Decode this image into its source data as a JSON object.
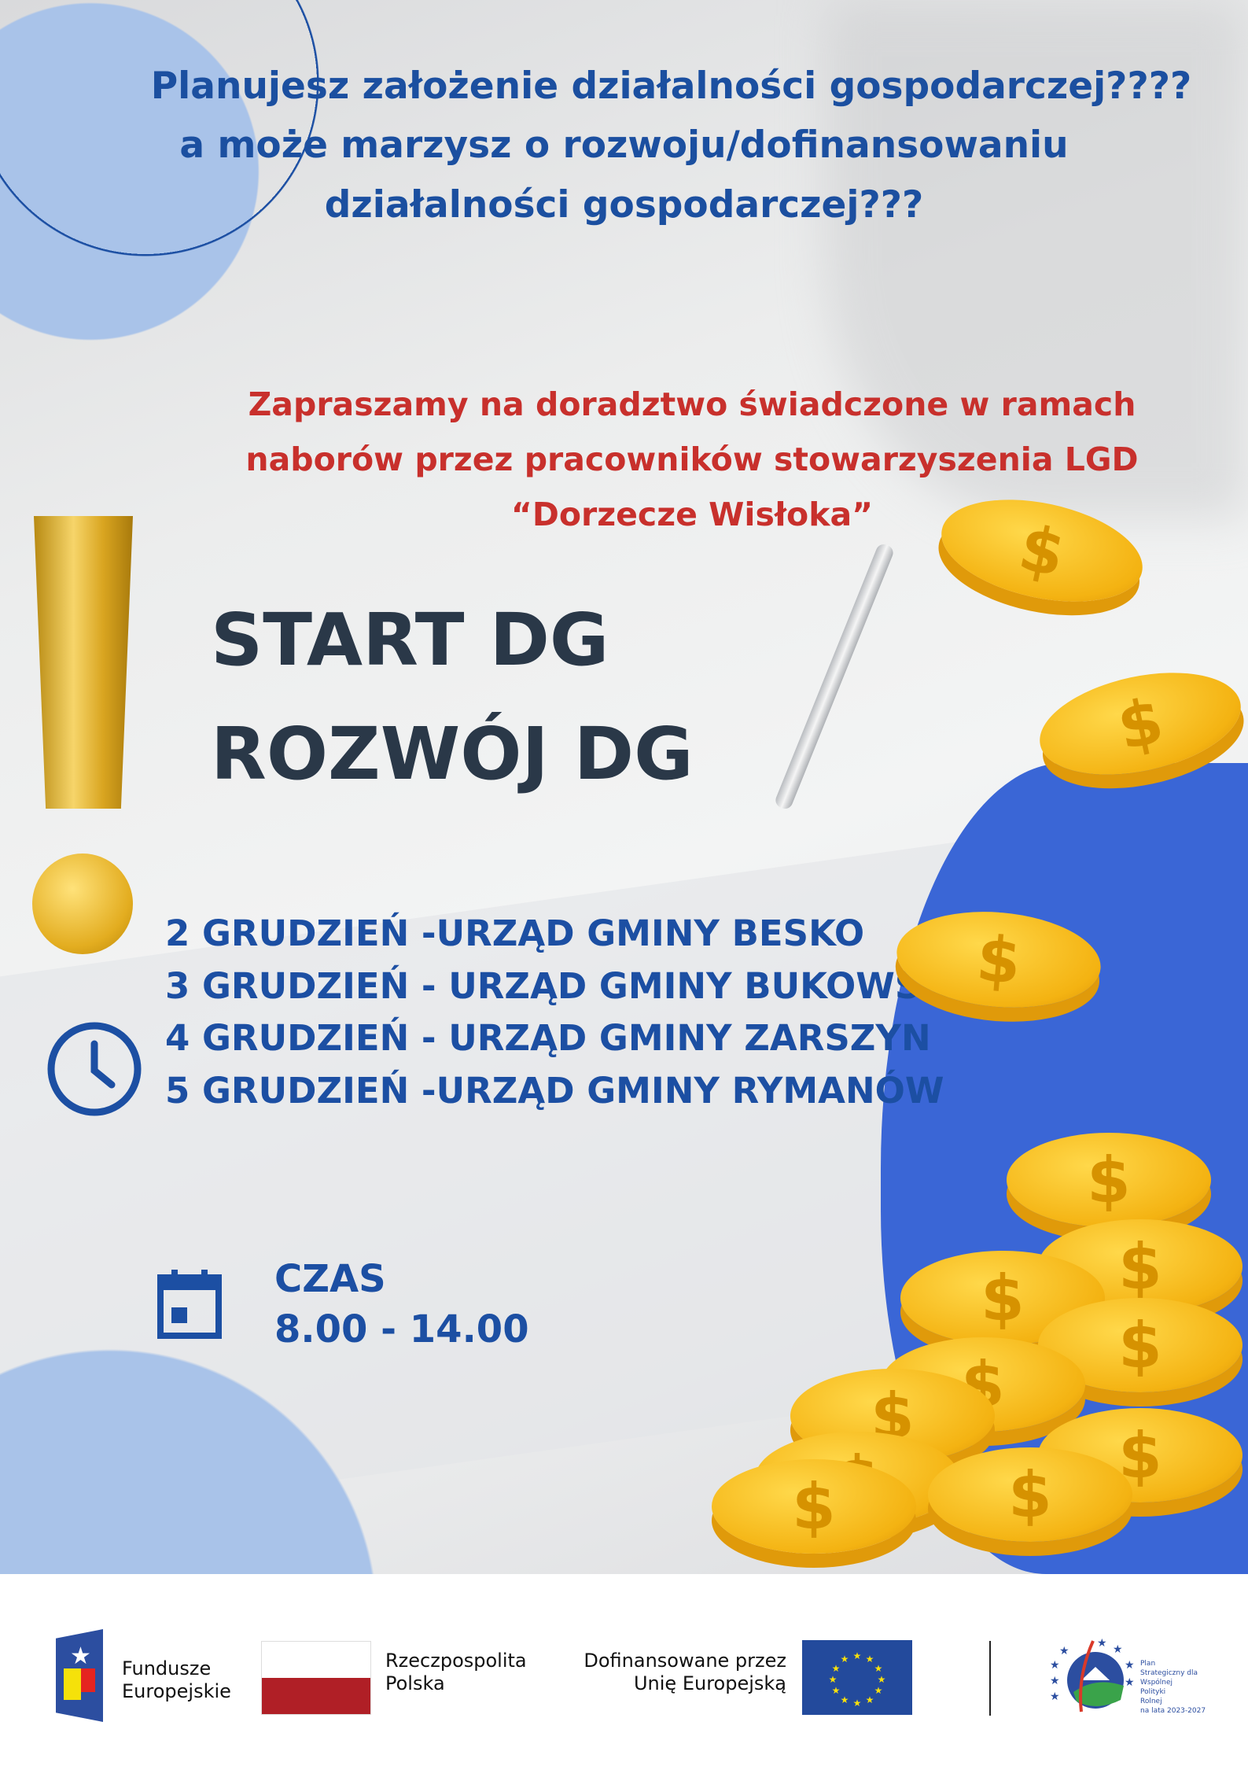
{
  "header": {
    "lines": [
      "Planujesz założenie działalności gospodarczej????",
      "a może marzysz o rozwoju/dofinansowaniu",
      "działalności gospodarczej???"
    ]
  },
  "invitation": {
    "lines": [
      "Zapraszamy na doradztwo  świadczone w ramach",
      "naborów przez pracowników stowarzyszenia LGD",
      "“Dorzecze Wisłoka”"
    ]
  },
  "programs": [
    "START DG",
    "ROZWÓJ DG"
  ],
  "schedule": [
    "2 GRUDZIEŃ -URZĄD  GMINY BESKO",
    "3 GRUDZIEŃ - URZĄD GMINY  BUKOWSKO",
    "4 GRUDZIEŃ - URZĄD GMINY ZARSZYN",
    "5 GRUDZIEŃ -URZĄD  GMINY RYMANÓW"
  ],
  "time": {
    "label": "CZAS",
    "value": "8.00 - 14.00"
  },
  "coin_symbol": "$",
  "footer": {
    "fe": [
      "Fundusze",
      "Europejskie"
    ],
    "rp": [
      "Rzeczpospolita",
      "Polska"
    ],
    "eu": [
      "Dofinansowane przez",
      "Unię Europejską"
    ],
    "ps": [
      "Plan",
      "Strategiczny dla",
      "Wspólnej",
      "Polityki",
      "Rolnej",
      "na lata 2023-2027"
    ]
  },
  "colors": {
    "blue": "#1b4fa0",
    "red": "#c8302c",
    "dark": "#2a3848",
    "gold": "#f4b312",
    "accent_blue": "#3a66d6"
  },
  "icons": [
    "clock-icon",
    "calendar-icon",
    "exclamation-icon",
    "coin-icon"
  ]
}
